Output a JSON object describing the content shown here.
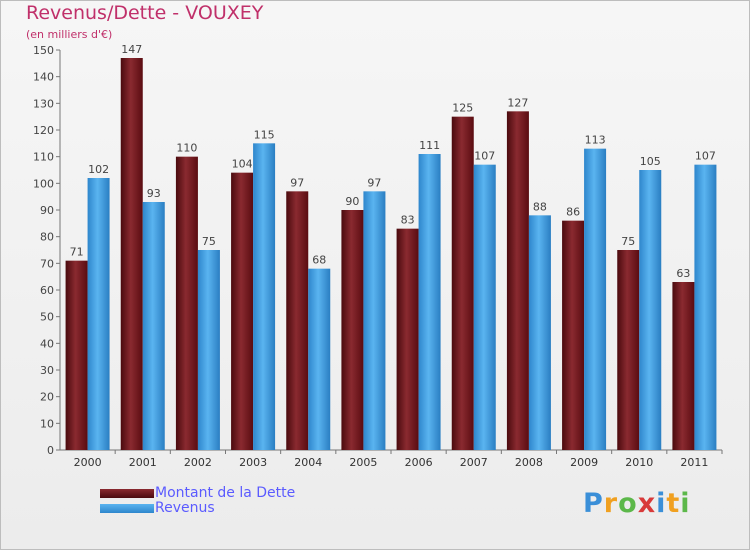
{
  "chart_data": {
    "type": "bar",
    "title": "Revenus/Dette - VOUXEY",
    "subtitle": "(en milliers d'€)",
    "categories": [
      "2000",
      "2001",
      "2002",
      "2003",
      "2004",
      "2005",
      "2006",
      "2007",
      "2008",
      "2009",
      "2010",
      "2011"
    ],
    "series": [
      {
        "name": "Montant de la Dette",
        "color": "#6e0f15",
        "values": [
          71,
          147,
          110,
          104,
          97,
          90,
          83,
          125,
          127,
          86,
          75,
          63
        ]
      },
      {
        "name": "Revenus",
        "color": "#3aa0e8",
        "values": [
          102,
          93,
          75,
          115,
          68,
          97,
          111,
          107,
          88,
          113,
          105,
          107
        ]
      }
    ],
    "ylim": [
      0,
      150
    ],
    "yticks": [
      0,
      10,
      20,
      30,
      40,
      50,
      60,
      70,
      80,
      90,
      100,
      110,
      120,
      130,
      140,
      150
    ],
    "grid": false,
    "legend": "bottom-left"
  },
  "brand": {
    "logo_letters": [
      "P",
      "r",
      "o",
      "x",
      "i",
      "t",
      "i"
    ],
    "logo_colors": [
      "#3a8fd8",
      "#f0a020",
      "#5cb84a",
      "#d83a3a",
      "#3a8fd8",
      "#f0a020",
      "#5cb84a"
    ]
  }
}
